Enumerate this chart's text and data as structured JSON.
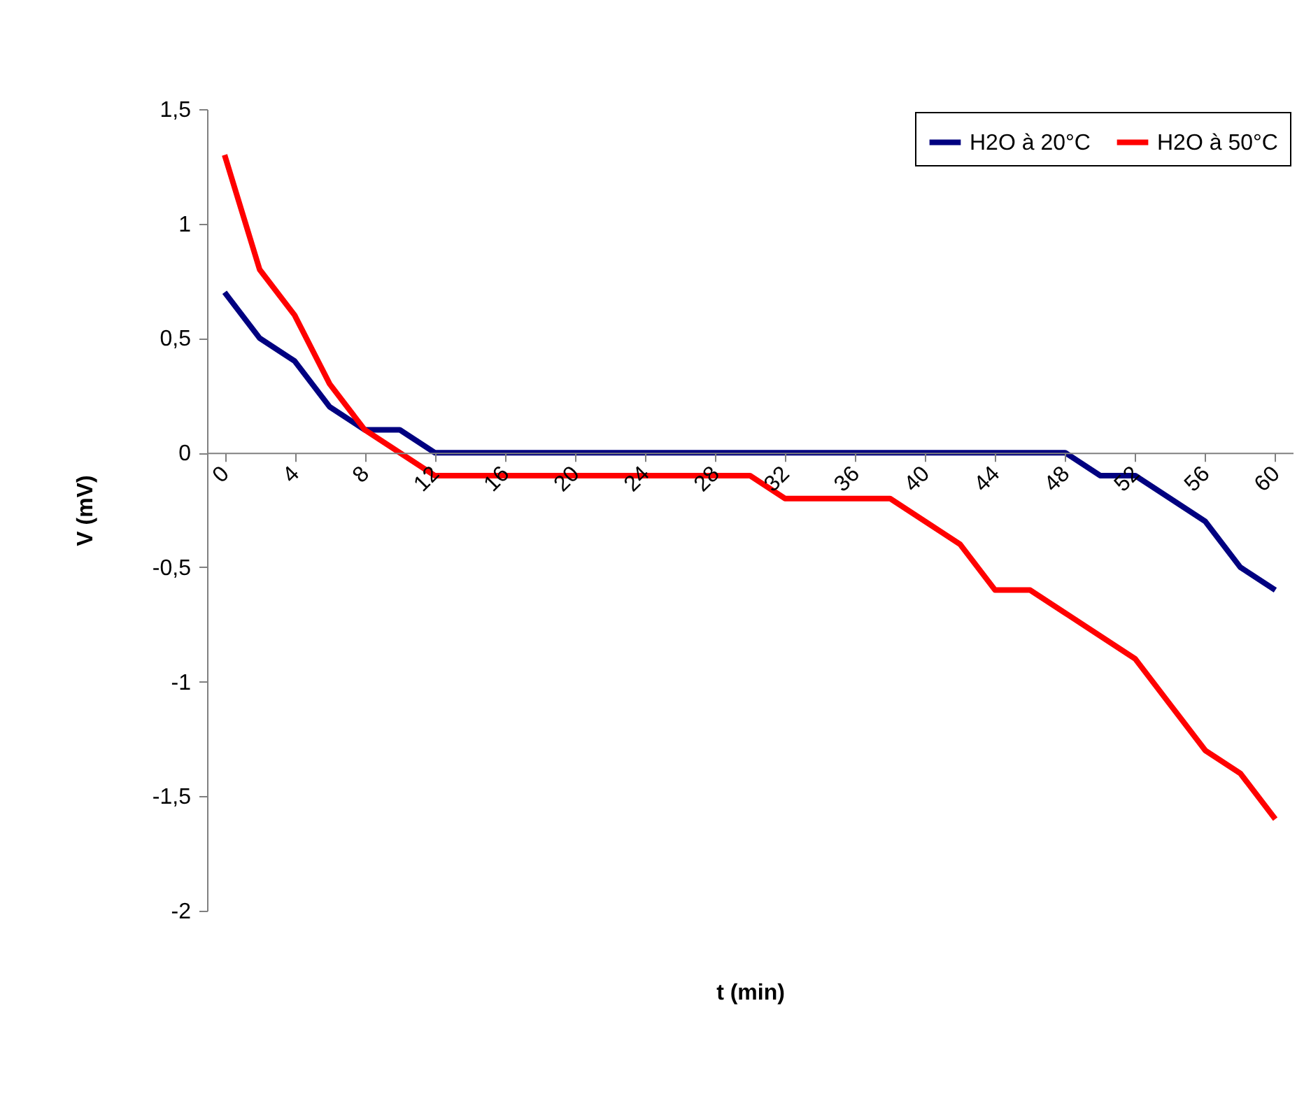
{
  "chart_data": {
    "type": "line",
    "xlabel": "t (min)",
    "ylabel": "V (mV)",
    "x": [
      0,
      2,
      4,
      6,
      8,
      10,
      12,
      14,
      16,
      18,
      20,
      22,
      24,
      26,
      28,
      30,
      32,
      34,
      36,
      38,
      40,
      42,
      44,
      46,
      48,
      50,
      52,
      54,
      56,
      58,
      60
    ],
    "series": [
      {
        "name": "H2O à 20°C",
        "color": "#000080",
        "values": [
          0.7,
          0.5,
          0.4,
          0.2,
          0.1,
          0.1,
          0,
          0,
          0,
          0,
          0,
          0,
          0,
          0,
          0,
          0,
          0,
          0,
          0,
          0,
          0,
          0,
          0,
          0,
          0,
          -0.1,
          -0.1,
          -0.2,
          -0.3,
          -0.5,
          -0.6
        ]
      },
      {
        "name": "H2O à 50°C",
        "color": "#ff0000",
        "values": [
          1.3,
          0.8,
          0.6,
          0.3,
          0.1,
          0,
          -0.1,
          -0.1,
          -0.1,
          -0.1,
          -0.1,
          -0.1,
          -0.1,
          -0.1,
          -0.1,
          -0.1,
          -0.2,
          -0.2,
          -0.2,
          -0.2,
          -0.3,
          -0.4,
          -0.6,
          -0.6,
          -0.7,
          -0.8,
          -0.9,
          -1.1,
          -1.3,
          -1.4,
          -1.6
        ]
      }
    ],
    "xlim": [
      -1,
      61
    ],
    "xticks": [
      0,
      4,
      8,
      12,
      16,
      20,
      24,
      28,
      32,
      36,
      40,
      44,
      48,
      52,
      56,
      60
    ],
    "ylim": [
      -2,
      1.5
    ],
    "yticks": [
      {
        "value": -2,
        "label": "-2"
      },
      {
        "value": -1.5,
        "label": "-1,5"
      },
      {
        "value": -1,
        "label": "-1"
      },
      {
        "value": -0.5,
        "label": "-0,5"
      },
      {
        "value": 0,
        "label": "0"
      },
      {
        "value": 0.5,
        "label": "0,5"
      },
      {
        "value": 1,
        "label": "1"
      },
      {
        "value": 1.5,
        "label": "1,5"
      }
    ],
    "grid": false,
    "legend": "top right",
    "marker": "none",
    "line_style": "solid"
  }
}
